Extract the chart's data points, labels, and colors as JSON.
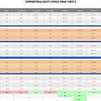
{
  "title": "COMMODITIES& EQUITY INDICES CHEAT SHEET &",
  "headers": [
    "SILVER",
    "HG COPPER",
    "WTI CRUDE",
    "PAR GOLD",
    "S&P 500",
    "DAW 30",
    "FTSE 100"
  ],
  "sections": [
    {
      "rows": [
        [
          "15.61",
          "1.80",
          "56.98",
          "1.4%",
          "2657.81",
          "10068.10",
          "6963.51"
        ],
        [
          "15.67",
          "1.81",
          "56.98",
          "1.4%",
          "2662.84",
          "10048.74",
          "6963.74"
        ],
        [
          "16.61",
          "1.81",
          "56.80",
          "1.4%",
          "2668.42",
          "10068.74",
          "6965.94"
        ],
        [
          "6.17%",
          "-1.40%",
          "6.17%",
          "1.4%",
          "10.21%",
          "10.62%",
          "9.18%"
        ]
      ],
      "bg": "#f0f0f0",
      "divider_after": true
    },
    {
      "rows": [
        [
          "16.11",
          "1.13",
          "60.60",
          "1.4%",
          "2667.83",
          "10092.26",
          "6969.62"
        ],
        [
          "16.67",
          "1.14",
          "60.63",
          "1.4%",
          "2668.43",
          "10091.74",
          "6969.84"
        ],
        [
          "16.61",
          "1.14",
          "60.64",
          "1.4%",
          "2669.62",
          "10091.74",
          "6969.34"
        ],
        [
          "6.17%",
          "1.14",
          "60.64",
          "1.4%",
          "2669.50",
          "10091.74",
          "6969.34"
        ]
      ],
      "bg": "#f5c896",
      "divider_after": true
    },
    {
      "rows": [
        [
          "16.11",
          "1.14",
          "61.70",
          "1.4%",
          "2668.80",
          "10090.42",
          "6967.52"
        ],
        [
          "16.61",
          "1.14",
          "61.60",
          "1.4%",
          "2669.61",
          "10091.05",
          "6967.55"
        ],
        [
          "16.61",
          "1.14",
          "61.60",
          "1.4%",
          "2669.61",
          "10091.05",
          "6967.55"
        ],
        [
          "16.61",
          "1.14",
          "61.60",
          "1.4%",
          "2669.50",
          "-1.71",
          "6967.55"
        ]
      ],
      "bg": "#f0f0f0",
      "divider_after": true
    },
    {
      "rows": [
        [
          "10.15",
          "1.04",
          "60.70",
          "1.4%",
          "2670.81",
          "10071.32",
          "6966.52"
        ],
        [
          "10.15",
          "1.04",
          "60.80",
          "1.4%",
          "2670.81",
          "10071.32",
          "6967.52"
        ],
        [
          "10.16",
          "1.04",
          "60.80",
          "1.4%",
          "2670.89",
          "10071.32",
          "6967.62"
        ],
        [
          "10.16",
          "1.04",
          "60.80",
          "1.4%",
          "2670.47",
          "10071.32",
          "6967.62"
        ]
      ],
      "bg": "#f5c896",
      "divider_after": true
    },
    {
      "rows": [
        [
          "-0.77%",
          "-0.66%",
          "2.1%",
          "1.36%",
          "-0.61%",
          "-0.62%",
          "-0.71%"
        ],
        [
          "-0.61%",
          "-0.60%",
          "-1.00%",
          "-11.50%",
          "-1.10%",
          "-8.12%",
          "-0.71%"
        ],
        [
          "-0.61%",
          "-0.60%",
          "-0.60%",
          "-1.36%",
          "-1.10%",
          "-0.10%",
          "-0.71%"
        ],
        [
          "-0.61%",
          "-1.60%",
          "+0.15%",
          "1.36%",
          "-1.10%",
          "-0.10%",
          "-0.19%"
        ]
      ],
      "bg": "#f0f0f0",
      "divider_after": false
    },
    {
      "rows": [
        [
          "Sell",
          "Sell",
          "Buy",
          "Sell",
          "Buy",
          "Buy",
          "Buy"
        ],
        [
          "",
          "",
          "",
          "",
          "Buy",
          "Buy",
          ""
        ],
        [
          "",
          "",
          "",
          "",
          "",
          "Buy",
          ""
        ]
      ],
      "bg": "#ffffff",
      "divider_after": false,
      "is_signal": true
    }
  ],
  "header_bg": "#808080",
  "header_fg": "#ffffff",
  "divider_color": "#2255dd",
  "sell_fg": "#cc2222",
  "sell_bg": "#ffaaaa",
  "buy_fg": "#228822",
  "buy_bg": "#aaffaa",
  "text_color": "#333333",
  "neg_color": "#cc2222",
  "pos_color": "#228822"
}
